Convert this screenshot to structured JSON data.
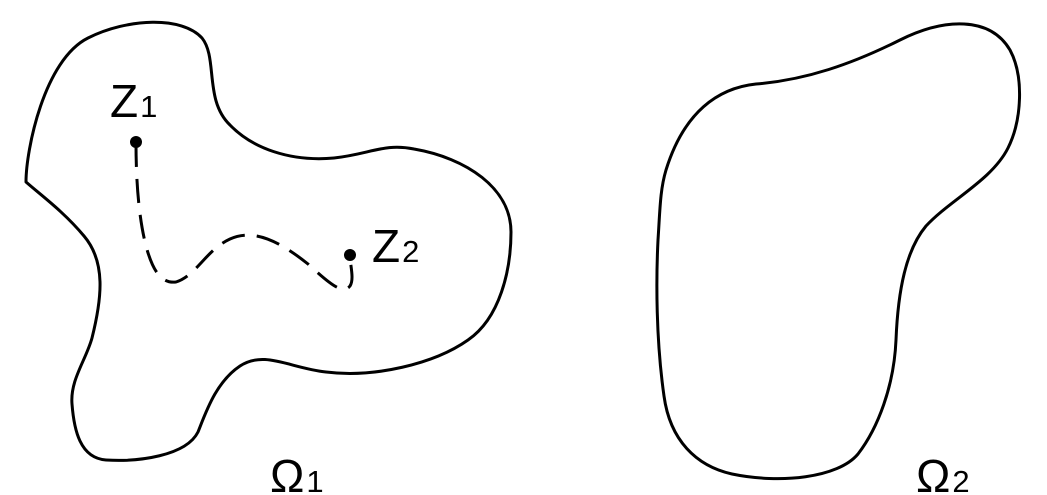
{
  "diagram": {
    "regions": [
      {
        "name": "Ω",
        "subscript": "1"
      },
      {
        "name": "Ω",
        "subscript": "2"
      }
    ],
    "points": [
      {
        "name": "Z",
        "subscript": "1"
      },
      {
        "name": "Z",
        "subscript": "2"
      }
    ],
    "path": {
      "style": "dashed",
      "from": "Z1",
      "to": "Z2"
    },
    "colors": {
      "stroke": "#000000",
      "background": "#ffffff"
    }
  }
}
